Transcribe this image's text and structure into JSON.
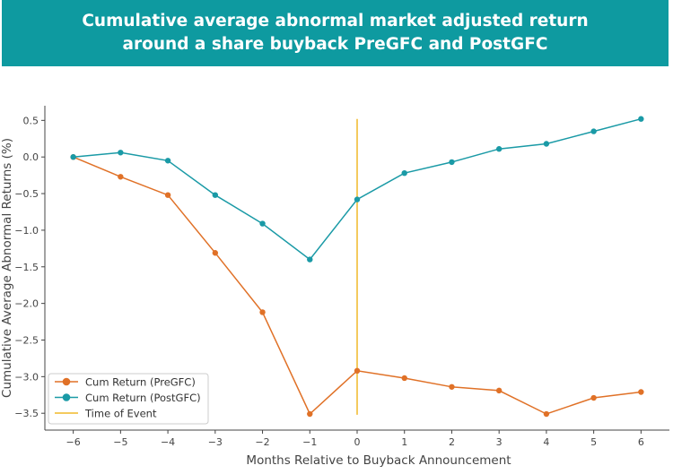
{
  "header": {
    "title_line1": "Cumulative average abnormal market adjusted return",
    "title_line2": "around a share buyback PreGFC and PostGFC"
  },
  "chart_data": {
    "type": "line",
    "xlabel": "Months Relative to Buyback Announcement",
    "ylabel": "Cumulative Average Abnormal Returns (%)",
    "x": [
      -6,
      -5,
      -4,
      -3,
      -2,
      -1,
      0,
      1,
      2,
      3,
      4,
      5,
      6
    ],
    "xticks": [
      "−6",
      "−5",
      "−4",
      "−3",
      "−2",
      "−1",
      "0",
      "1",
      "2",
      "3",
      "4",
      "5",
      "6"
    ],
    "yticks": [
      0.5,
      0.0,
      -0.5,
      -1.0,
      -1.5,
      -2.0,
      -2.5,
      -3.0,
      -3.5
    ],
    "ytick_labels": [
      "0.5",
      "0.0",
      "−0.5",
      "−1.0",
      "−1.5",
      "−2.0",
      "−2.5",
      "−3.0",
      "−3.5"
    ],
    "xlim": [
      -6.6,
      6.6
    ],
    "ylim": [
      -3.73,
      0.7
    ],
    "series": [
      {
        "name": "Cum Return (PreGFC)",
        "color": "#e07127",
        "values": [
          0.0,
          -0.27,
          -0.52,
          -1.31,
          -2.12,
          -3.51,
          -2.92,
          -3.02,
          -3.14,
          -3.19,
          -3.51,
          -3.29,
          -3.21
        ]
      },
      {
        "name": "Cum Return (PostGFC)",
        "color": "#1a9aa6",
        "values": [
          0.0,
          0.06,
          -0.05,
          -0.52,
          -0.91,
          -1.4,
          -0.58,
          -0.22,
          -0.07,
          0.11,
          0.18,
          0.35,
          0.52
        ]
      }
    ],
    "event_line": {
      "name": "Time of Event",
      "x": 0,
      "y_range": [
        -3.52,
        0.52
      ],
      "color": "#f1b829"
    },
    "legend_position": "lower-left",
    "grid": false
  }
}
